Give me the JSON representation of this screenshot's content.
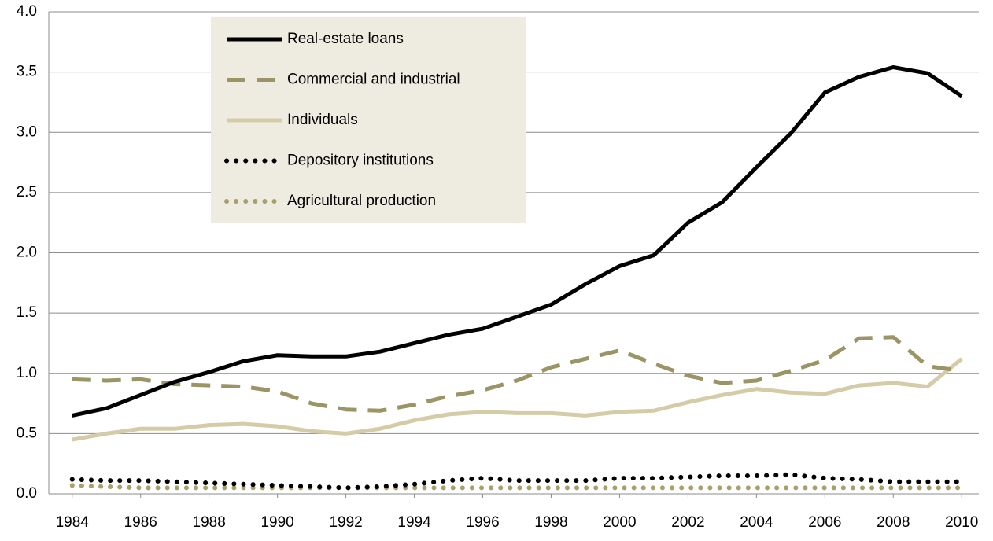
{
  "chart_data": {
    "type": "line",
    "x": [
      1984,
      1985,
      1986,
      1987,
      1988,
      1989,
      1990,
      1991,
      1992,
      1993,
      1994,
      1995,
      1996,
      1997,
      1998,
      1999,
      2000,
      2001,
      2002,
      2003,
      2004,
      2005,
      2006,
      2007,
      2008,
      2009,
      2010
    ],
    "xlim": [
      1983.5,
      2010.5
    ],
    "xticks": [
      1984,
      1986,
      1988,
      1990,
      1992,
      1994,
      1996,
      1998,
      2000,
      2002,
      2004,
      2006,
      2008,
      2010
    ],
    "ylim": [
      0,
      4
    ],
    "yticks": [
      {
        "value": 0,
        "label": "0.0"
      },
      0.5,
      {
        "value": 1,
        "label": "1.0"
      },
      1.5,
      {
        "value": 2,
        "label": "2.0"
      },
      2.5,
      {
        "value": 3,
        "label": "3.0"
      },
      3.5,
      {
        "value": 4,
        "label": "4.0"
      }
    ],
    "grid": true,
    "legend": "top-left",
    "series": [
      {
        "name": "Real-estate loans",
        "color": "#000000",
        "style": "solid",
        "values": [
          0.65,
          0.71,
          0.82,
          0.93,
          1.01,
          1.1,
          1.15,
          1.14,
          1.14,
          1.18,
          1.25,
          1.32,
          1.37,
          1.47,
          1.57,
          1.74,
          1.89,
          1.98,
          2.25,
          2.42,
          2.71,
          2.99,
          3.33,
          3.46,
          3.54,
          3.49,
          3.3
        ]
      },
      {
        "name": "Commercial and industrial",
        "color": "#9b9464",
        "style": "dashed",
        "values": [
          0.95,
          0.94,
          0.95,
          0.91,
          0.9,
          0.89,
          0.85,
          0.75,
          0.7,
          0.69,
          0.74,
          0.81,
          0.86,
          0.94,
          1.05,
          1.12,
          1.19,
          1.08,
          0.98,
          0.92,
          0.94,
          1.02,
          1.11,
          1.29,
          1.3,
          1.06,
          1.02
        ]
      },
      {
        "name": "Individuals",
        "color": "#d5cba6",
        "style": "solid",
        "values": [
          0.45,
          0.5,
          0.54,
          0.54,
          0.57,
          0.58,
          0.56,
          0.52,
          0.5,
          0.54,
          0.61,
          0.66,
          0.68,
          0.67,
          0.67,
          0.65,
          0.68,
          0.69,
          0.76,
          0.82,
          0.87,
          0.84,
          0.83,
          0.9,
          0.92,
          0.89,
          1.12
        ]
      },
      {
        "name": "Depository institutions",
        "color": "#000000",
        "style": "dotted",
        "values": [
          0.12,
          0.11,
          0.11,
          0.1,
          0.09,
          0.08,
          0.07,
          0.06,
          0.05,
          0.06,
          0.08,
          0.11,
          0.13,
          0.11,
          0.11,
          0.11,
          0.13,
          0.13,
          0.14,
          0.15,
          0.15,
          0.16,
          0.13,
          0.12,
          0.1,
          0.1,
          0.1
        ]
      },
      {
        "name": "Agricultural production",
        "color": "#a99f6b",
        "style": "dotted",
        "values": [
          0.07,
          0.06,
          0.05,
          0.05,
          0.05,
          0.05,
          0.05,
          0.05,
          0.05,
          0.05,
          0.05,
          0.05,
          0.05,
          0.05,
          0.05,
          0.05,
          0.05,
          0.05,
          0.05,
          0.05,
          0.05,
          0.05,
          0.05,
          0.05,
          0.05,
          0.05,
          0.05
        ]
      }
    ]
  }
}
